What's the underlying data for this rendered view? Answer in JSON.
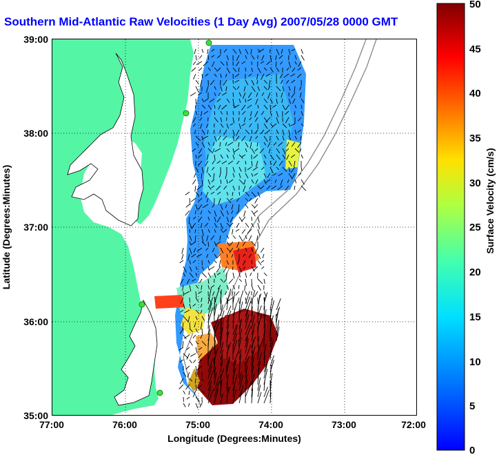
{
  "title": "Southern Mid-Atlantic Raw Velocities (1 Day Avg) 2007/05/28 0000 GMT",
  "map": {
    "xlabel": "Longitude (Degrees:Minutes)",
    "ylabel": "Latitude (Degrees:Minutes)",
    "lon_ticks": [
      "77:00",
      "76:00",
      "75:00",
      "74:00",
      "73:00",
      "72:00"
    ],
    "lat_ticks": [
      "39:00",
      "38:00",
      "37:00",
      "36:00",
      "35:00"
    ],
    "lon_range": [
      -77,
      -72
    ],
    "lat_range": [
      35,
      39
    ],
    "grid": "dotted",
    "land_color": "#55f5a6",
    "stations": [
      {
        "lon": -74.86,
        "lat": 38.98
      },
      {
        "lon": -75.09,
        "lat": 38.22
      },
      {
        "lon": -75.71,
        "lat": 36.19
      },
      {
        "lon": -75.47,
        "lat": 35.25
      }
    ]
  },
  "colorbar": {
    "label": "Surface Velocity (cm/s)",
    "ticks": [
      "50",
      "45",
      "40",
      "35",
      "30",
      "25",
      "20",
      "15",
      "10",
      "5",
      "0"
    ],
    "min": 0,
    "max": 50,
    "colormap": "jet"
  }
}
